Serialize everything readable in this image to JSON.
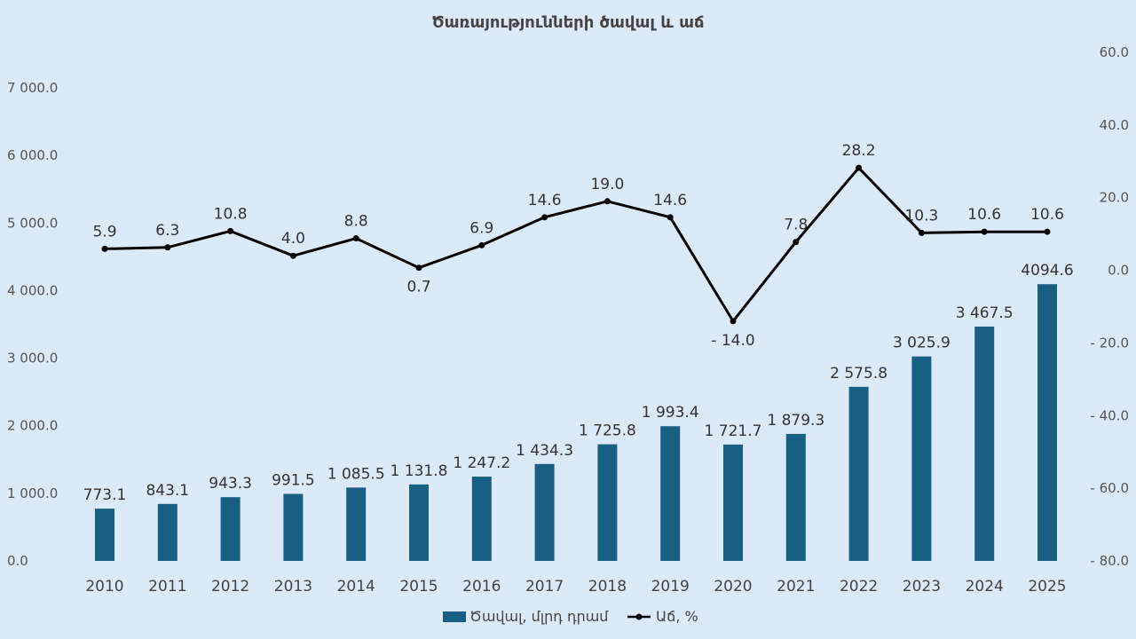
{
  "chart_data": {
    "type": "bar",
    "title": "Ծառայությունների ծավալ և աճ",
    "categories": [
      "2010",
      "2011",
      "2012",
      "2013",
      "2014",
      "2015",
      "2016",
      "2017",
      "2018",
      "2019",
      "2020",
      "2021",
      "2022",
      "2023",
      "2024",
      "2025"
    ],
    "series": [
      {
        "name": "Ծավալ, մլրդ դրամ",
        "type": "bar",
        "axis": "left",
        "color": "#175f83",
        "values": [
          773.1,
          843.1,
          943.3,
          991.5,
          1085.5,
          1131.8,
          1247.2,
          1434.3,
          1725.8,
          1993.4,
          1721.7,
          1879.3,
          2575.8,
          3025.9,
          3467.5,
          4094.6
        ],
        "labels": [
          "773.1",
          "843.1",
          "943.3",
          "991.5",
          "1 085.5",
          "1 131.8",
          "1 247.2",
          "1 434.3",
          "1 725.8",
          "1 993.4",
          "1 721.7",
          "1 879.3",
          "2 575.8",
          "3 025.9",
          "3 467.5",
          "4094.6"
        ]
      },
      {
        "name": "Աճ, %",
        "type": "line",
        "axis": "right",
        "color": "#000000",
        "values": [
          5.9,
          6.3,
          10.8,
          4.0,
          8.8,
          0.7,
          6.9,
          14.6,
          19.0,
          14.6,
          -14.0,
          7.8,
          28.2,
          10.3,
          10.6,
          10.6
        ],
        "labels": [
          "5.9",
          "6.3",
          "10.8",
          "4.0",
          "8.8",
          "0.7",
          "6.9",
          "14.6",
          "19.0",
          "14.6",
          "- 14.0",
          "7.8",
          "28.2",
          "10.3",
          "10.6",
          "10.6"
        ]
      }
    ],
    "left_axis": {
      "ylim": [
        0,
        7000
      ],
      "tick_values": [
        0,
        1000,
        2000,
        3000,
        4000,
        5000,
        6000,
        7000
      ],
      "tick_labels": [
        "0.0",
        "1 000.0",
        "2 000.0",
        "3 000.0",
        "4 000.0",
        "5 000.0",
        "6 000.0",
        "7 000.0"
      ]
    },
    "right_axis": {
      "ylim": [
        -80,
        60
      ],
      "tick_values": [
        -80,
        -60,
        -40,
        -20,
        0,
        20,
        40,
        60
      ],
      "tick_labels": [
        "- 80.0",
        "- 60.0",
        "- 40.0",
        "- 20.0",
        "0.0",
        "20.0",
        "40.0",
        "60.0"
      ]
    },
    "highlight": {
      "category": "2025",
      "color": "#e00000"
    },
    "legend": {
      "position": "bottom"
    },
    "grid": false
  }
}
